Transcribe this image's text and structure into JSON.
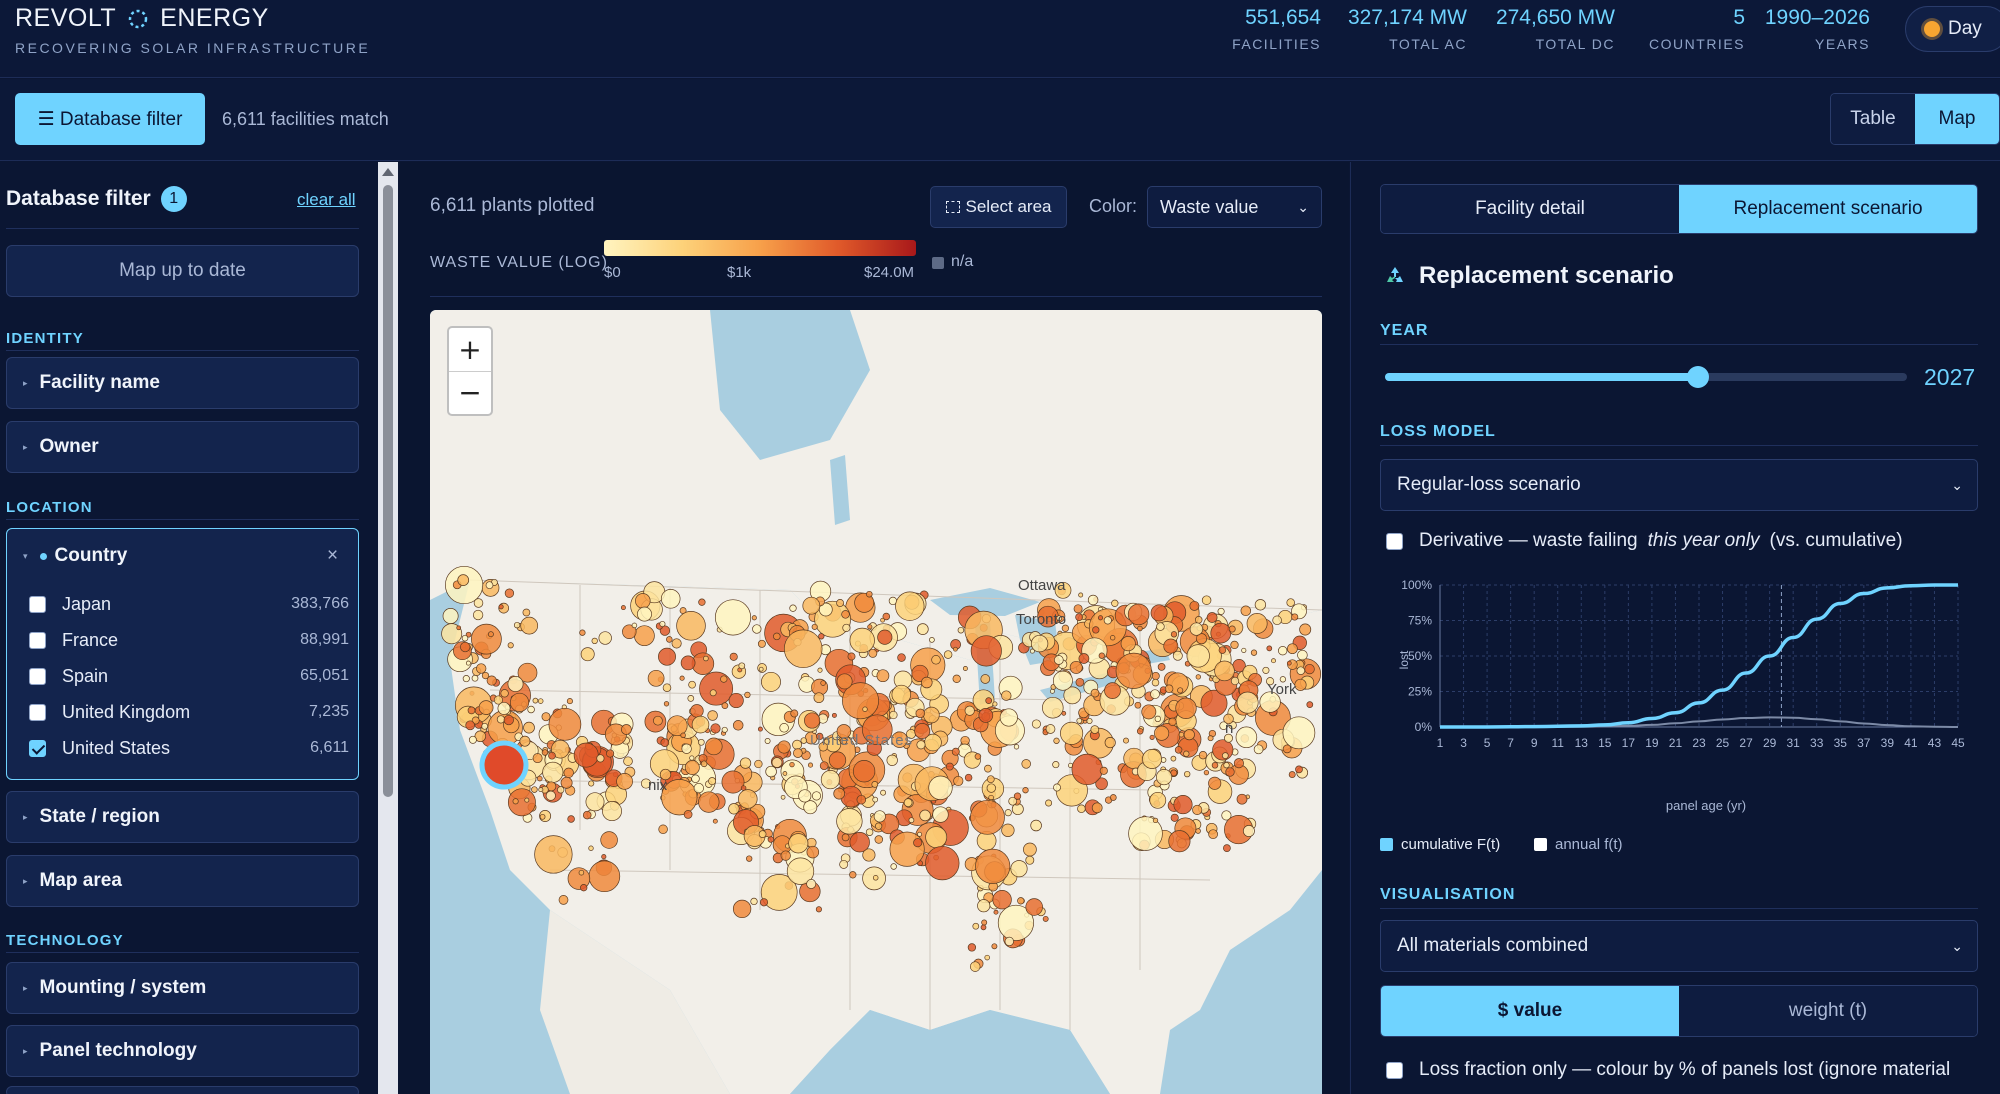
{
  "header": {
    "brand_left": "REVOLT",
    "brand_right": "ENERGY",
    "tagline": "RECOVERING SOLAR INFRASTRUCTURE",
    "stats": [
      {
        "value": "551,654",
        "label": "FACILITIES"
      },
      {
        "value": "327,174 MW",
        "label": "TOTAL AC"
      },
      {
        "value": "274,650 MW",
        "label": "TOTAL DC"
      },
      {
        "value": "5",
        "label": "COUNTRIES"
      },
      {
        "value": "1990–2026",
        "label": "YEARS"
      }
    ],
    "theme_label": "Day"
  },
  "toolbar": {
    "filter_button": "☰ Database filter",
    "match_count": "6,611 facilities match",
    "view_table": "Table",
    "view_map": "Map"
  },
  "sidebar": {
    "title": "Database filter",
    "badge": "1",
    "clear_all": "clear all",
    "map_status": "Map up to date",
    "sections": {
      "identity": "IDENTITY",
      "location": "LOCATION",
      "technology": "TECHNOLOGY"
    },
    "facets": {
      "facility_name": "Facility name",
      "owner": "Owner",
      "country": "Country",
      "state_region": "State / region",
      "map_area": "Map area",
      "mounting": "Mounting / system",
      "panel_tech": "Panel technology"
    },
    "countries": [
      {
        "name": "Japan",
        "count": "383,766",
        "checked": false
      },
      {
        "name": "France",
        "count": "88,991",
        "checked": false
      },
      {
        "name": "Spain",
        "count": "65,051",
        "checked": false
      },
      {
        "name": "United Kingdom",
        "count": "7,235",
        "checked": false
      },
      {
        "name": "United States",
        "count": "6,611",
        "checked": true
      }
    ]
  },
  "map_panel": {
    "plots_count": "6,611 plants plotted",
    "select_area": "Select area",
    "color_label": "Color:",
    "color_value": "Waste value",
    "legend_title": "WASTE VALUE (LOG)",
    "legend_ticks": [
      "$0",
      "$1k",
      "$24.0M"
    ],
    "legend_na": "n/a",
    "labels": {
      "ottawa": "Ottawa",
      "toronto": "Toronto",
      "york": "York",
      "united_states": "United States",
      "phoenix": "nix",
      "n_label": "n"
    }
  },
  "right_panel": {
    "tab_facility": "Facility detail",
    "tab_replacement": "Replacement scenario",
    "title": "Replacement scenario",
    "year_section": "YEAR",
    "year_value": "2027",
    "year_fraction": 0.6,
    "loss_section": "LOSS MODEL",
    "loss_value": "Regular-loss scenario",
    "derivative_prefix": "Derivative — waste failing",
    "derivative_em": "this year only",
    "derivative_suffix": "(vs. cumulative)",
    "vis_section": "VISUALISATION",
    "vis_value": "All materials combined",
    "vis_toggle_value": "$ value",
    "vis_toggle_weight": "weight (t)",
    "lossfrac_label": "Loss fraction only — colour by % of panels lost (ignore material"
  },
  "colors": {
    "accent": "#6fd3ff",
    "background": "#0b1633",
    "cumulative": "#6fd3ff",
    "annual": "#ffffff"
  },
  "chart_data": {
    "type": "line",
    "xlabel": "panel age (yr)",
    "ylabel": "lost",
    "x_ticks": [
      "1",
      "3",
      "5",
      "7",
      "9",
      "11",
      "13",
      "15",
      "17",
      "19",
      "21",
      "23",
      "25",
      "27",
      "29",
      "31",
      "33",
      "35",
      "37",
      "39",
      "41",
      "43",
      "45"
    ],
    "y_ticks": [
      "0%",
      "25%",
      "50%",
      "75%",
      "100%"
    ],
    "xlim": [
      1,
      45
    ],
    "ylim": [
      0,
      100
    ],
    "marker_age": 30,
    "series": [
      {
        "name": "cumulative F(t)",
        "color": "#6fd3ff",
        "x": [
          1,
          5,
          9,
          13,
          15,
          17,
          19,
          21,
          23,
          25,
          27,
          29,
          31,
          33,
          35,
          37,
          39,
          41,
          43,
          45
        ],
        "y": [
          0,
          0,
          0.3,
          0.8,
          1.5,
          3,
          6,
          10,
          17,
          26,
          38,
          50,
          63,
          76,
          87,
          94,
          98,
          99.5,
          100,
          100
        ]
      },
      {
        "name": "annual f(t)",
        "color": "#7c8aa6",
        "x": [
          1,
          9,
          13,
          17,
          19,
          21,
          23,
          25,
          27,
          29,
          31,
          33,
          35,
          37,
          39,
          41,
          43,
          45
        ],
        "y": [
          0,
          0,
          0.2,
          0.8,
          1.5,
          2.6,
          4,
          5.3,
          6.3,
          6.8,
          6.5,
          5.5,
          4,
          2.5,
          1.3,
          0.5,
          0.2,
          0
        ]
      }
    ],
    "legend": [
      "cumulative F(t)",
      "annual f(t)"
    ]
  }
}
